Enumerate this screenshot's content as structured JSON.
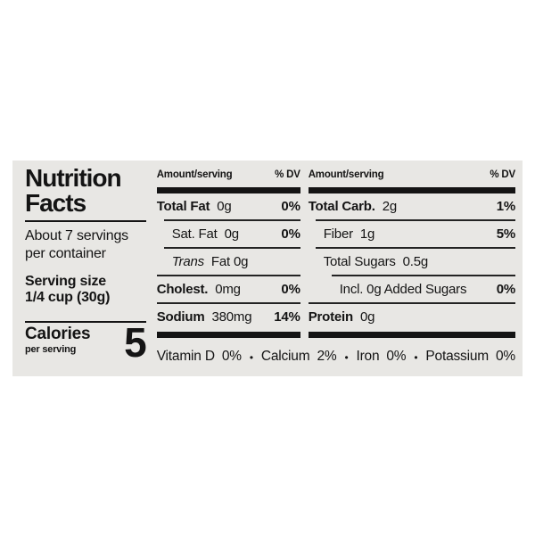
{
  "label": {
    "colors": {
      "card_bg": "#e8e7e4",
      "text": "#141414"
    },
    "title_line1": "Nutrition",
    "title_line2": "Facts",
    "servings_line1": "About 7 servings",
    "servings_line2": "per container",
    "serving_size_label": "Serving size",
    "serving_size_value": "1/4 cup (30g)",
    "calories_label": "Calories",
    "calories_sublabel": "per serving",
    "calories_value": "5",
    "column_header": {
      "amount": "Amount/serving",
      "dv": "% DV"
    },
    "columns": [
      {
        "rows": [
          {
            "name": "Total Fat",
            "amount": "0g",
            "dv": "0%"
          },
          {
            "name": "Sat. Fat",
            "amount": "0g",
            "dv": "0%"
          },
          {
            "name": "Trans",
            "amount": "Fat 0g",
            "dv": ""
          },
          {
            "name": "Cholest.",
            "amount": "0mg",
            "dv": "0%"
          },
          {
            "name": "Sodium",
            "amount": "380mg",
            "dv": "14%"
          }
        ]
      },
      {
        "rows": [
          {
            "name": "Total Carb.",
            "amount": "2g",
            "dv": "1%"
          },
          {
            "name": "Fiber",
            "amount": "1g",
            "dv": "5%"
          },
          {
            "name": "Total Sugars",
            "amount": "0.5g",
            "dv": ""
          },
          {
            "name": "Incl. 0g Added Sugars",
            "amount": "",
            "dv": "0%"
          },
          {
            "name": "Protein",
            "amount": "0g",
            "dv": ""
          }
        ]
      }
    ],
    "bullet": "•",
    "micronutrients": [
      {
        "name": "Vitamin D",
        "dv": "0%"
      },
      {
        "name": "Calcium",
        "dv": "2%"
      },
      {
        "name": "Iron",
        "dv": "0%"
      },
      {
        "name": "Potassium",
        "dv": "0%"
      }
    ]
  }
}
